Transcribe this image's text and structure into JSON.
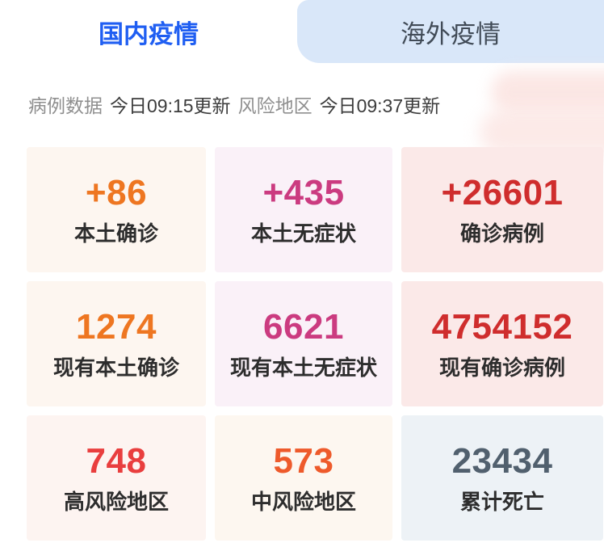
{
  "tabs": {
    "domestic": {
      "label": "国内疫情",
      "active": true
    },
    "overseas": {
      "label": "海外疫情",
      "active": false
    }
  },
  "status_bar": {
    "case_data_label": "病例数据",
    "case_data_update": "今日09:15更新",
    "risk_area_label": "风险地区",
    "risk_area_update": "今日09:37更新"
  },
  "stats": [
    {
      "value": "+86",
      "label": "本土确诊",
      "value_color": "#ee7621",
      "bg": "#fdf6f0"
    },
    {
      "value": "+435",
      "label": "本土无症状",
      "value_color": "#cb3b80",
      "bg": "#faf1f8"
    },
    {
      "value": "+26601",
      "label": "确诊病例",
      "value_color": "#cf2d2d",
      "bg": "#fbe9e8"
    },
    {
      "value": "1274",
      "label": "现有本土确诊",
      "value_color": "#ee7621",
      "bg": "#fdf6f0"
    },
    {
      "value": "6621",
      "label": "现有本土无症状",
      "value_color": "#cb3b80",
      "bg": "#faf1f8"
    },
    {
      "value": "4754152",
      "label": "现有确诊病例",
      "value_color": "#cf2d2d",
      "bg": "#fbe9e8"
    },
    {
      "value": "748",
      "label": "高风险地区",
      "value_color": "#e93e3e",
      "bg": "#fdf4f1"
    },
    {
      "value": "573",
      "label": "中风险地区",
      "value_color": "#ee5a2b",
      "bg": "#fdf7f0"
    },
    {
      "value": "23434",
      "label": "累计死亡",
      "value_color": "#51606e",
      "bg": "#edf2f6"
    }
  ],
  "colors": {
    "active_tab_text": "#1f5ef2",
    "active_tab_bg": "#ffffff",
    "inactive_tab_bg": "#d9e7f9",
    "inactive_tab_text": "#414b57",
    "label_text": "#2d2d2d",
    "status_label": "#8f8f8f",
    "status_time": "#3c3c3c"
  }
}
